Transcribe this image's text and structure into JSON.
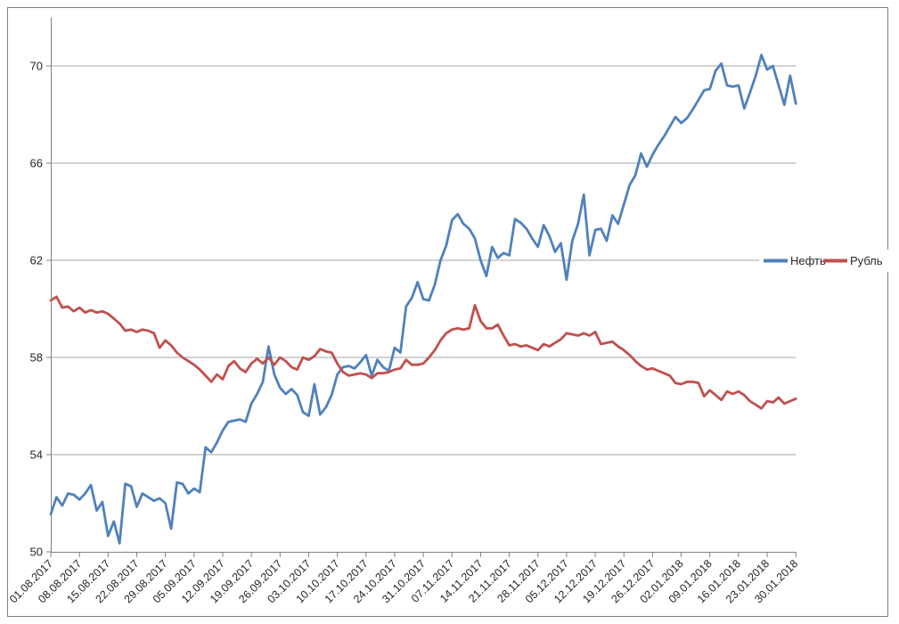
{
  "chart": {
    "background": "#ffffff",
    "border_color": "#808080"
  },
  "chart_data": {
    "type": "line",
    "title": "",
    "xlabel": "",
    "ylabel": "",
    "grid": true,
    "legend_position": "right-middle",
    "gridline_color": "#a6a6a6",
    "axis_color": "#808080",
    "label_color": "#262626",
    "ylim": [
      50,
      72
    ],
    "yticks": [
      50,
      54,
      58,
      62,
      66,
      70
    ],
    "x_tick_labels": [
      "01.08.2017",
      "08.08.2017",
      "15.08.2017",
      "22.08.2017",
      "29.08.2017",
      "05.09.2017",
      "12.09.2017",
      "19.09.2017",
      "26.09.2017",
      "03.10.2017",
      "10.10.2017",
      "17.10.2017",
      "24.10.2017",
      "31.10.2017",
      "07.11.2017",
      "14.11.2017",
      "21.11.2017",
      "28.11.2017",
      "05.12.2017",
      "12.12.2017",
      "19.12.2017",
      "26.12.2017",
      "02.01.2018",
      "09.01.2018",
      "16.01.2018",
      "23.01.2018",
      "30.01.2018"
    ],
    "x": [
      "01.08.2017",
      "02.08.2017",
      "03.08.2017",
      "04.08.2017",
      "07.08.2017",
      "08.08.2017",
      "09.08.2017",
      "10.08.2017",
      "11.08.2017",
      "14.08.2017",
      "15.08.2017",
      "16.08.2017",
      "17.08.2017",
      "18.08.2017",
      "21.08.2017",
      "22.08.2017",
      "23.08.2017",
      "24.08.2017",
      "25.08.2017",
      "28.08.2017",
      "29.08.2017",
      "30.08.2017",
      "31.08.2017",
      "01.09.2017",
      "04.09.2017",
      "05.09.2017",
      "06.09.2017",
      "07.09.2017",
      "08.09.2017",
      "11.09.2017",
      "12.09.2017",
      "13.09.2017",
      "14.09.2017",
      "15.09.2017",
      "18.09.2017",
      "19.09.2017",
      "20.09.2017",
      "21.09.2017",
      "22.09.2017",
      "25.09.2017",
      "26.09.2017",
      "27.09.2017",
      "28.09.2017",
      "29.09.2017",
      "02.10.2017",
      "03.10.2017",
      "04.10.2017",
      "05.10.2017",
      "06.10.2017",
      "09.10.2017",
      "10.10.2017",
      "11.10.2017",
      "12.10.2017",
      "13.10.2017",
      "16.10.2017",
      "17.10.2017",
      "18.10.2017",
      "19.10.2017",
      "20.10.2017",
      "23.10.2017",
      "24.10.2017",
      "25.10.2017",
      "26.10.2017",
      "27.10.2017",
      "30.10.2017",
      "31.10.2017",
      "01.11.2017",
      "02.11.2017",
      "03.11.2017",
      "06.11.2017",
      "07.11.2017",
      "08.11.2017",
      "09.11.2017",
      "10.11.2017",
      "13.11.2017",
      "14.11.2017",
      "15.11.2017",
      "16.11.2017",
      "17.11.2017",
      "20.11.2017",
      "21.11.2017",
      "22.11.2017",
      "23.11.2017",
      "24.11.2017",
      "27.11.2017",
      "28.11.2017",
      "29.11.2017",
      "30.11.2017",
      "01.12.2017",
      "04.12.2017",
      "05.12.2017",
      "06.12.2017",
      "07.12.2017",
      "08.12.2017",
      "11.12.2017",
      "12.12.2017",
      "13.12.2017",
      "14.12.2017",
      "15.12.2017",
      "18.12.2017",
      "19.12.2017",
      "20.12.2017",
      "21.12.2017",
      "22.12.2017",
      "25.12.2017",
      "26.12.2017",
      "27.12.2017",
      "28.12.2017",
      "29.12.2017",
      "01.01.2018",
      "02.01.2018",
      "03.01.2018",
      "04.01.2018",
      "05.01.2018",
      "08.01.2018",
      "09.01.2018",
      "10.01.2018",
      "11.01.2018",
      "12.01.2018",
      "15.01.2018",
      "16.01.2018",
      "17.01.2018",
      "18.01.2018",
      "19.01.2018",
      "22.01.2018",
      "23.01.2018",
      "24.01.2018",
      "25.01.2018",
      "26.01.2018",
      "29.01.2018",
      "30.01.2018"
    ],
    "series": [
      {
        "key": "oil",
        "name": "Нефть",
        "color": "#4F81BD",
        "values": [
          51.55,
          52.25,
          51.9,
          52.4,
          52.35,
          52.15,
          52.4,
          52.75,
          51.7,
          52.05,
          50.65,
          51.25,
          50.35,
          52.8,
          52.7,
          51.85,
          52.4,
          52.25,
          52.1,
          52.2,
          52.0,
          50.95,
          52.85,
          52.8,
          52.4,
          52.6,
          52.45,
          54.3,
          54.1,
          54.5,
          55.0,
          55.35,
          55.4,
          55.45,
          55.35,
          56.1,
          56.5,
          57.0,
          58.45,
          57.3,
          56.75,
          56.5,
          56.7,
          56.45,
          55.75,
          55.6,
          56.9,
          55.65,
          55.95,
          56.45,
          57.3,
          57.6,
          57.65,
          57.55,
          57.8,
          58.1,
          57.25,
          57.9,
          57.6,
          57.45,
          58.4,
          58.2,
          60.1,
          60.45,
          61.1,
          60.4,
          60.35,
          61.0,
          62.0,
          62.6,
          63.65,
          63.9,
          63.5,
          63.3,
          62.9,
          62.0,
          61.35,
          62.55,
          62.1,
          62.3,
          62.2,
          63.7,
          63.55,
          63.3,
          62.9,
          62.55,
          63.45,
          63.0,
          62.35,
          62.7,
          61.2,
          62.8,
          63.5,
          64.7,
          62.2,
          63.25,
          63.3,
          62.8,
          63.85,
          63.5,
          64.3,
          65.1,
          65.5,
          66.4,
          65.85,
          66.35,
          66.75,
          67.1,
          67.5,
          67.9,
          67.65,
          67.85,
          68.2,
          68.6,
          69.0,
          69.05,
          69.8,
          70.1,
          69.2,
          69.15,
          69.2,
          68.25,
          68.9,
          69.6,
          70.45,
          69.85,
          70.0,
          69.2,
          68.4,
          69.6,
          68.45
        ]
      },
      {
        "key": "ruble",
        "name": "Рубль",
        "color": "#C0504D",
        "values": [
          60.35,
          60.5,
          60.05,
          60.1,
          59.9,
          60.05,
          59.85,
          59.95,
          59.85,
          59.9,
          59.8,
          59.6,
          59.4,
          59.1,
          59.15,
          59.05,
          59.15,
          59.1,
          59.0,
          58.4,
          58.7,
          58.5,
          58.2,
          58.0,
          57.85,
          57.7,
          57.5,
          57.25,
          57.0,
          57.3,
          57.1,
          57.65,
          57.85,
          57.55,
          57.4,
          57.75,
          57.95,
          57.75,
          58.0,
          57.7,
          58.0,
          57.85,
          57.6,
          57.5,
          58.0,
          57.9,
          58.05,
          58.35,
          58.25,
          58.2,
          57.75,
          57.4,
          57.25,
          57.3,
          57.35,
          57.3,
          57.15,
          57.35,
          57.35,
          57.4,
          57.5,
          57.55,
          57.9,
          57.7,
          57.7,
          57.75,
          58.0,
          58.3,
          58.7,
          59.0,
          59.15,
          59.2,
          59.15,
          59.2,
          60.15,
          59.5,
          59.2,
          59.2,
          59.35,
          58.9,
          58.5,
          58.55,
          58.45,
          58.5,
          58.4,
          58.3,
          58.55,
          58.45,
          58.6,
          58.75,
          59.0,
          58.95,
          58.9,
          59.0,
          58.9,
          59.05,
          58.55,
          58.6,
          58.65,
          58.45,
          58.3,
          58.1,
          57.85,
          57.65,
          57.5,
          57.55,
          57.45,
          57.35,
          57.25,
          56.95,
          56.9,
          57.0,
          57.0,
          56.95,
          56.4,
          56.65,
          56.45,
          56.25,
          56.6,
          56.5,
          56.6,
          56.45,
          56.2,
          56.05,
          55.9,
          56.2,
          56.15,
          56.35,
          56.1,
          56.2,
          56.3
        ]
      }
    ]
  }
}
